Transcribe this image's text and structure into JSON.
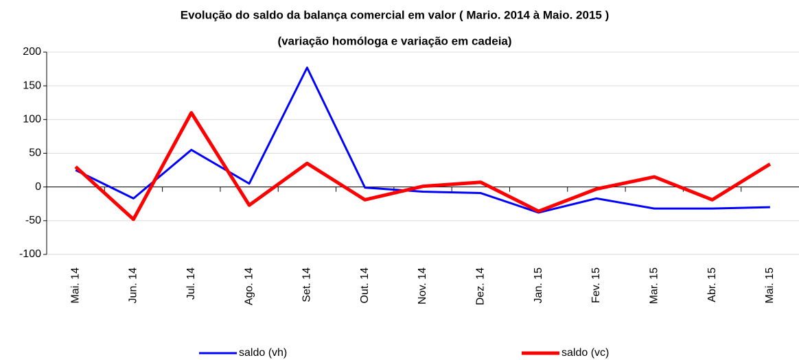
{
  "chart_data": {
    "type": "line",
    "title": "Evolução do saldo da balança comercial  em valor ( Mario. 2014 à Maio. 2015 )",
    "subtitle": "(variação homóloga e variação em cadeia)",
    "categories": [
      "Mai. 14",
      "Jun. 14",
      "Jul. 14",
      "Ago. 14",
      "Set. 14",
      "Out. 14",
      "Nov. 14",
      "Dez. 14",
      "Jan. 15",
      "Fev. 15",
      "Mar. 15",
      "Abr. 15",
      "Mai. 15"
    ],
    "series": [
      {
        "name": "saldo (vh)",
        "color": "#0000ff",
        "width": 3,
        "values": [
          25,
          -17,
          55,
          5,
          177,
          -1,
          -7,
          -9,
          -38,
          -17,
          -32,
          -32,
          -30
        ]
      },
      {
        "name": "saldo (vc)",
        "color": "#ff0000",
        "width": 5,
        "values": [
          30,
          -48,
          110,
          -27,
          35,
          -19,
          1,
          7,
          -36,
          -3,
          15,
          -19,
          34
        ]
      }
    ],
    "ylim": [
      -100,
      200
    ],
    "yticks": [
      -100,
      -50,
      0,
      50,
      100,
      150,
      200
    ],
    "grid": true
  }
}
